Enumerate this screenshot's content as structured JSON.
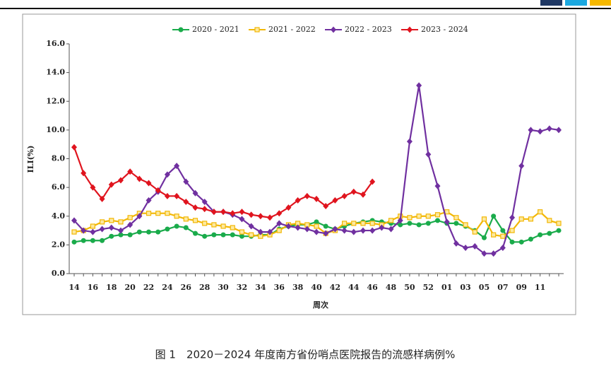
{
  "chart_data": {
    "type": "line",
    "categories": [
      "14",
      null,
      "16",
      null,
      "18",
      null,
      "20",
      null,
      "22",
      null,
      "24",
      null,
      "26",
      null,
      "28",
      null,
      "30",
      null,
      "32",
      null,
      "34",
      null,
      "36",
      null,
      "38",
      null,
      "40",
      null,
      "42",
      null,
      "44",
      null,
      "46",
      null,
      "48",
      null,
      "50",
      null,
      "52",
      null,
      "01",
      null,
      "03",
      null,
      "05",
      null,
      "07",
      null,
      "09",
      null,
      "11",
      null,
      null
    ],
    "series": [
      {
        "name": "2020 - 2021",
        "color": "#1aab4b",
        "marker": "circle",
        "values": [
          2.2,
          2.3,
          2.3,
          2.3,
          2.6,
          2.7,
          2.7,
          2.9,
          2.9,
          2.9,
          3.1,
          3.3,
          3.2,
          2.8,
          2.6,
          2.7,
          2.7,
          2.7,
          2.6,
          2.6,
          2.7,
          2.7,
          3.1,
          3.3,
          3.4,
          3.4,
          3.6,
          3.3,
          3.1,
          3.3,
          3.5,
          3.6,
          3.7,
          3.6,
          3.5,
          3.4,
          3.5,
          3.4,
          3.5,
          3.7,
          3.5,
          3.5,
          3.3,
          3.0,
          2.5,
          4.0,
          3.0,
          2.2,
          2.2,
          2.4,
          2.7,
          2.8,
          3.0
        ]
      },
      {
        "name": "2021 - 2022",
        "color": "#f2b705",
        "marker": "square",
        "values": [
          2.9,
          3.0,
          3.3,
          3.6,
          3.7,
          3.6,
          3.9,
          4.2,
          4.2,
          4.2,
          4.2,
          4.0,
          3.8,
          3.7,
          3.5,
          3.4,
          3.3,
          3.2,
          2.9,
          2.7,
          2.6,
          2.7,
          3.0,
          3.4,
          3.5,
          3.4,
          3.3,
          2.8,
          3.0,
          3.5,
          3.5,
          3.5,
          3.5,
          3.4,
          3.7,
          4.0,
          3.9,
          4.0,
          4.0,
          4.1,
          4.3,
          3.9,
          3.4,
          2.9,
          3.8,
          2.7,
          2.6,
          3.0,
          3.8,
          3.8,
          4.3,
          3.7,
          3.5
        ]
      },
      {
        "name": "2022 - 2023",
        "color": "#7030a0",
        "marker": "diamond",
        "values": [
          3.7,
          3.0,
          2.9,
          3.1,
          3.2,
          3.0,
          3.4,
          4.0,
          5.1,
          5.7,
          6.9,
          7.5,
          6.4,
          5.6,
          5.0,
          4.3,
          4.3,
          4.1,
          3.8,
          3.3,
          2.9,
          2.9,
          3.5,
          3.3,
          3.2,
          3.1,
          2.9,
          2.8,
          3.1,
          3.0,
          2.9,
          3.0,
          3.0,
          3.2,
          3.1,
          3.7,
          9.2,
          13.1,
          8.3,
          6.1,
          3.6,
          2.1,
          1.8,
          1.9,
          1.4,
          1.4,
          1.8,
          3.9,
          7.5,
          10.0,
          9.9,
          10.1,
          10.0
        ]
      },
      {
        "name": "2023 - 2024",
        "color": "#e0141e",
        "marker": "diamond",
        "values": [
          8.8,
          7.0,
          6.0,
          5.2,
          6.2,
          6.5,
          7.1,
          6.6,
          6.3,
          5.8,
          5.4,
          5.4,
          5.0,
          4.6,
          4.5,
          4.3,
          4.3,
          4.2,
          4.3,
          4.1,
          4.0,
          3.9,
          4.2,
          4.6,
          5.1,
          5.4,
          5.2,
          4.7,
          5.1,
          5.4,
          5.7,
          5.5,
          6.4,
          null,
          null,
          null,
          null,
          null,
          null,
          null,
          null,
          null,
          null,
          null,
          null,
          null,
          null,
          null,
          null,
          null,
          null,
          null,
          null
        ]
      }
    ],
    "ylim": [
      0,
      16
    ],
    "yticks": [
      {
        "value": 0,
        "label": "0.0"
      },
      {
        "value": 2,
        "label": "2.0"
      },
      {
        "value": 4,
        "label": "4.0"
      },
      {
        "value": 6,
        "label": "6.0"
      },
      {
        "value": 8,
        "label": "8.0"
      },
      {
        "value": 10,
        "label": "10.0"
      },
      {
        "value": 12,
        "label": "12.0"
      },
      {
        "value": 14,
        "label": "14.0"
      },
      {
        "value": 16,
        "label": "16.0"
      }
    ],
    "x_label": "周次",
    "y_label": "ILI(%)",
    "legend": "top",
    "caption": "图 1　2020－2024 年度南方省份哨点医院报告的流感样病例%"
  }
}
